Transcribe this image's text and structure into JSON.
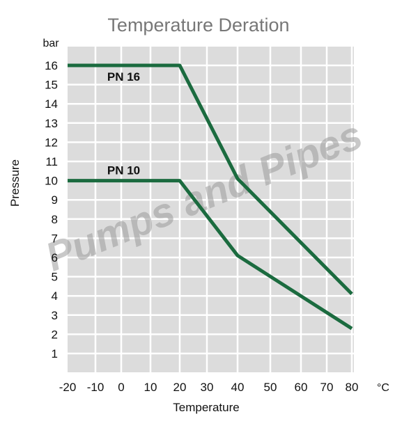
{
  "chart_data": {
    "type": "line",
    "title": "Temperature Deration",
    "xlabel": "Temperature",
    "ylabel": "Pressure",
    "y_unit": "bar",
    "x_unit": "°C",
    "x_ticks": [
      -20,
      -10,
      0,
      10,
      20,
      30,
      40,
      50,
      60,
      70,
      80
    ],
    "y_ticks": [
      1,
      2,
      3,
      4,
      5,
      6,
      7,
      8,
      9,
      10,
      11,
      12,
      13,
      14,
      15,
      16
    ],
    "ylim": [
      0,
      17
    ],
    "grid": true,
    "series": [
      {
        "name": "PN 16",
        "x": [
          -20,
          20,
          40,
          80
        ],
        "y": [
          16,
          16,
          10.1,
          4.1
        ]
      },
      {
        "name": "PN 10",
        "x": [
          -20,
          20,
          40,
          80
        ],
        "y": [
          10,
          10,
          6.1,
          2.3
        ]
      }
    ],
    "colors": {
      "line": "#1b6b3f",
      "plot_background": "#dcdcdc",
      "grid": "#ffffff"
    }
  },
  "watermark": "Pumps and Pipes"
}
